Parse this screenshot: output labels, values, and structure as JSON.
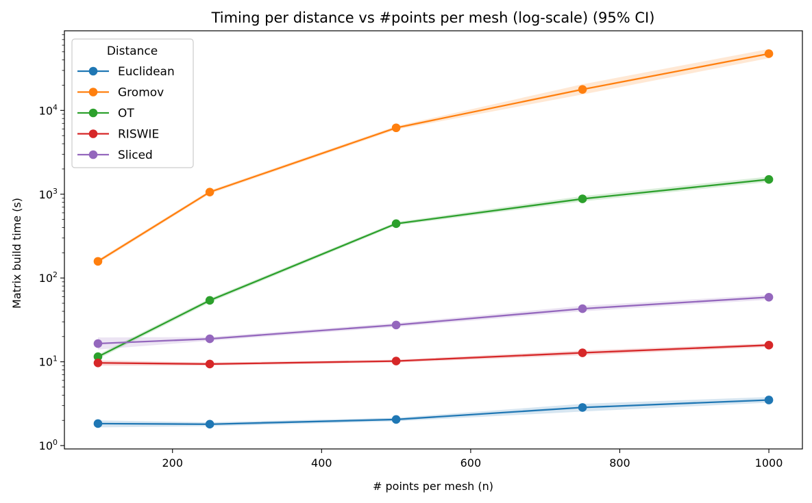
{
  "chart_data": {
    "type": "line",
    "title": "Timing per distance vs #points per mesh (log-scale) (95% CI)",
    "xlabel": "# points per mesh (n)",
    "ylabel": "Matrix build time (s)",
    "yscale": "log",
    "xlim": [
      55,
      1045
    ],
    "ylim_log10": [
      -0.04,
      4.95
    ],
    "x": [
      100,
      250,
      500,
      750,
      1000
    ],
    "x_ticks": [
      200,
      400,
      600,
      800,
      1000
    ],
    "y_ticks": [
      {
        "base": "10",
        "exp": "0",
        "value": 1
      },
      {
        "base": "10",
        "exp": "1",
        "value": 10
      },
      {
        "base": "10",
        "exp": "2",
        "value": 100
      },
      {
        "base": "10",
        "exp": "3",
        "value": 1000
      },
      {
        "base": "10",
        "exp": "4",
        "value": 10000
      }
    ],
    "legend": {
      "title": "Distance",
      "position": "top-left"
    },
    "series": [
      {
        "name": "Euclidean",
        "color": "#1f77b4",
        "values": [
          1.83,
          1.8,
          2.05,
          2.85,
          3.5
        ],
        "ci_low": [
          1.65,
          1.7,
          1.95,
          2.55,
          3.25
        ],
        "ci_high": [
          2.0,
          1.9,
          2.15,
          3.15,
          3.8
        ]
      },
      {
        "name": "Gromov",
        "color": "#ff7f0e",
        "values": [
          158,
          1060,
          6200,
          17800,
          47500
        ],
        "ci_low": [
          150,
          1010,
          5900,
          15500,
          42000
        ],
        "ci_high": [
          166,
          1110,
          6500,
          20500,
          54000
        ]
      },
      {
        "name": "OT",
        "color": "#2ca02c",
        "values": [
          11.5,
          54,
          445,
          880,
          1500
        ],
        "ci_low": [
          10.8,
          51,
          425,
          820,
          1400
        ],
        "ci_high": [
          12.2,
          57,
          465,
          950,
          1620
        ]
      },
      {
        "name": "RISWIE",
        "color": "#d62728",
        "values": [
          9.7,
          9.4,
          10.2,
          12.8,
          15.8
        ],
        "ci_low": [
          9.0,
          9.0,
          9.8,
          12.0,
          15.0
        ],
        "ci_high": [
          10.4,
          9.8,
          10.6,
          13.6,
          16.6
        ]
      },
      {
        "name": "Sliced",
        "color": "#9467bd",
        "values": [
          16.5,
          18.8,
          27.5,
          43.0,
          59.0
        ],
        "ci_low": [
          14.0,
          17.8,
          26.0,
          40.0,
          55.0
        ],
        "ci_high": [
          19.5,
          19.8,
          29.0,
          46.5,
          63.0
        ]
      }
    ]
  }
}
